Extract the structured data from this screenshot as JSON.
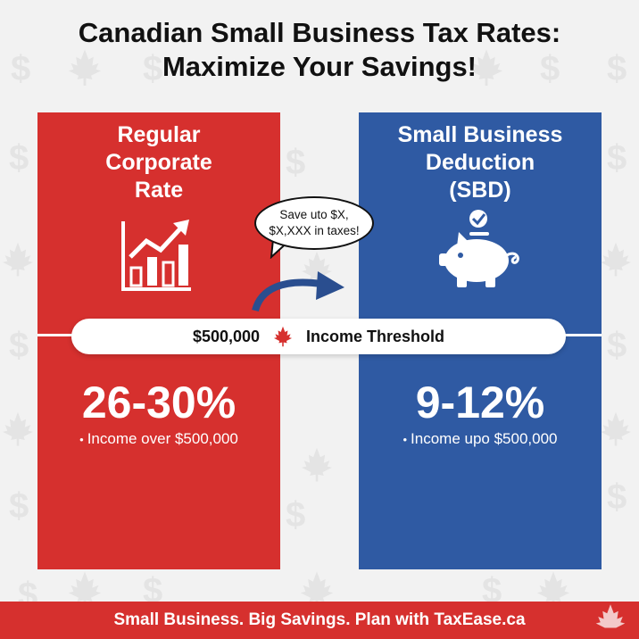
{
  "title": {
    "line1": "Canadian Small Business Tax Rates:",
    "line2": "Maximize Your Savings!"
  },
  "left_panel": {
    "heading": [
      "Regular",
      "Corporate",
      "Rate"
    ],
    "icon": "growth-chart-icon",
    "rate": "26-30%",
    "bullet": "•",
    "detail": "Income over $500,000",
    "color": "#d6302e"
  },
  "right_panel": {
    "heading": [
      "Small Business",
      "Deduction",
      "(SBD)"
    ],
    "icon": "piggy-bank-check-icon",
    "rate": "9-12%",
    "bullet": "•",
    "detail": "Income upo $500,000",
    "color": "#2f5aa3"
  },
  "callout": {
    "line1": "Save uto $X,",
    "line2": "$X,XXX in taxes!",
    "arrow_icon": "curved-arrow-icon"
  },
  "threshold": {
    "amount": "$500,000",
    "icon": "maple-leaf-icon",
    "label": "Income Threshold"
  },
  "footer": {
    "text": "Small Business. Big Savings. Plan with TaxEase.ca",
    "icon": "maple-leaf-icon"
  },
  "background_pattern": [
    "dollar-sign-icon",
    "maple-leaf-icon"
  ]
}
